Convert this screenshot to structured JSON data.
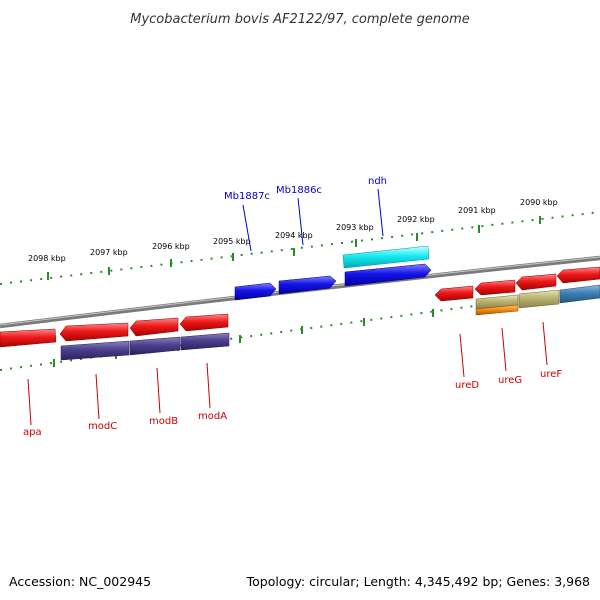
{
  "title": "Mycobacterium bovis AF2122/97, complete genome",
  "footer": {
    "accession": "Accession: NC_002945",
    "summary": "Topology: circular; Length: 4,345,492 bp; Genes: 3,968"
  },
  "scale_labels": [
    "2098 kbp",
    "2097 kbp",
    "2096 kbp",
    "2095 kbp",
    "2094 kbp",
    "2093 kbp",
    "2092 kbp",
    "2091 kbp",
    "2090 kbp"
  ],
  "gene_labels": {
    "apa": "apa",
    "modC": "modC",
    "modB": "modB",
    "modA": "modA",
    "Mb1887c": "Mb1887c",
    "Mb1886c": "Mb1886c",
    "ndh": "ndh",
    "ureD": "ureD",
    "ureG": "ureG",
    "ureF": "ureF"
  },
  "colors": {
    "backbone": "#7f7f7f",
    "ticks": "#2a8a2a",
    "cds_red": "#e8101a",
    "cds_blue": "#1010e0",
    "cds_cyan": "#10e8ef",
    "cog_purple": "#4c3f8c",
    "cog_khaki": "#b8b070",
    "cog_orange": "#f08a10",
    "cog_steel": "#3f7fb8",
    "label_red": "#cc0000",
    "label_blue": "#0000cc"
  }
}
